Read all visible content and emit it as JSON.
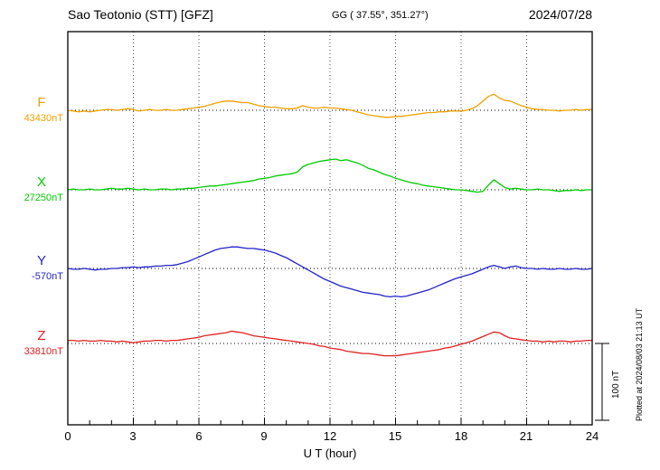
{
  "header": {
    "title": "Sao Teotonio (STT)  [GFZ]",
    "coords": "GG ( 37.55°, 351.27°)",
    "date": "2024/07/28"
  },
  "chart_data": {
    "type": "line",
    "title": "Sao Teotonio (STT) [GFZ] magnetogram 2024/07/28",
    "xlabel": "U T (hour)",
    "x_range": [
      0,
      24
    ],
    "x_tick_labels": [
      0,
      3,
      6,
      9,
      12,
      15,
      18,
      21,
      24
    ],
    "x_step_hours": 0.25,
    "grid": "dotted vertical lines every 3 hours; dotted horizontal baseline per trace",
    "legend_position": "left of axis, one label per trace",
    "scale_bar": {
      "label": "100 nT",
      "nT": 100
    },
    "plotted_note": "Plotted at 2024/08/03 21:13 UT",
    "series": [
      {
        "name": "F",
        "base_value_label": "43430nT",
        "color": "#f0a000",
        "offsets_nT": [
          0,
          -1,
          -2,
          -1,
          -2,
          -1,
          0,
          1,
          1,
          0,
          1,
          2,
          1,
          -1,
          0,
          1,
          0,
          0,
          1,
          0,
          0,
          1,
          2,
          3,
          4,
          5,
          7,
          9,
          11,
          12,
          12,
          11,
          10,
          10,
          8,
          6,
          5,
          4,
          4,
          3,
          2,
          2,
          3,
          6,
          4,
          3,
          3,
          4,
          3,
          3,
          2,
          1,
          0,
          -2,
          -4,
          -6,
          -7,
          -8,
          -9,
          -9,
          -8,
          -8,
          -7,
          -6,
          -5,
          -4,
          -3,
          -3,
          -2,
          -2,
          -1,
          -1,
          -1,
          0,
          2,
          6,
          12,
          18,
          21,
          16,
          13,
          12,
          9,
          6,
          4,
          2,
          1,
          1,
          0,
          0,
          -1,
          0,
          0,
          1,
          0,
          1,
          1
        ]
      },
      {
        "name": "X",
        "base_value_label": "27250nT",
        "color": "#00cc00",
        "offsets_nT": [
          0,
          1,
          0,
          0,
          1,
          0,
          0,
          1,
          2,
          1,
          1,
          2,
          1,
          0,
          1,
          0,
          0,
          1,
          1,
          0,
          1,
          1,
          2,
          2,
          3,
          4,
          5,
          5,
          6,
          7,
          8,
          9,
          10,
          11,
          12,
          14,
          15,
          16,
          18,
          19,
          20,
          21,
          23,
          30,
          33,
          35,
          37,
          38,
          39,
          40,
          38,
          39,
          37,
          35,
          32,
          28,
          26,
          23,
          20,
          18,
          15,
          13,
          11,
          9,
          8,
          6,
          5,
          4,
          3,
          2,
          1,
          0,
          0,
          -1,
          -2,
          -3,
          -2,
          6,
          13,
          8,
          3,
          1,
          2,
          1,
          0,
          0,
          1,
          0,
          0,
          -1,
          -2,
          -1,
          -1,
          0,
          -1,
          0,
          0
        ]
      },
      {
        "name": "Y",
        "base_value_label": "-570nT",
        "color": "#2222cc",
        "offsets_nT": [
          0,
          -1,
          -1,
          0,
          -1,
          -2,
          -1,
          -1,
          0,
          0,
          1,
          1,
          2,
          1,
          2,
          2,
          3,
          3,
          4,
          4,
          5,
          7,
          9,
          12,
          15,
          18,
          21,
          24,
          26,
          27,
          28,
          28,
          27,
          26,
          26,
          25,
          24,
          22,
          20,
          17,
          14,
          10,
          6,
          2,
          -2,
          -6,
          -10,
          -14,
          -17,
          -20,
          -23,
          -25,
          -27,
          -29,
          -31,
          -32,
          -33,
          -34,
          -36,
          -37,
          -36,
          -37,
          -36,
          -34,
          -32,
          -30,
          -28,
          -25,
          -22,
          -19,
          -16,
          -13,
          -11,
          -9,
          -7,
          -4,
          -1,
          2,
          4,
          2,
          0,
          2,
          3,
          1,
          0,
          0,
          -1,
          0,
          -1,
          -1,
          0,
          -1,
          -1,
          0,
          -1,
          -1,
          0
        ]
      },
      {
        "name": "Z",
        "base_value_label": "33810nT",
        "color": "#e02020",
        "offsets_nT": [
          4,
          4,
          3,
          4,
          3,
          3,
          4,
          3,
          3,
          2,
          3,
          2,
          1,
          2,
          3,
          3,
          4,
          4,
          3,
          4,
          4,
          5,
          6,
          7,
          8,
          10,
          11,
          12,
          13,
          14,
          16,
          15,
          14,
          12,
          10,
          9,
          8,
          7,
          6,
          5,
          4,
          3,
          2,
          1,
          0,
          -1,
          -3,
          -4,
          -6,
          -7,
          -8,
          -10,
          -11,
          -12,
          -13,
          -13,
          -14,
          -15,
          -16,
          -16,
          -16,
          -15,
          -14,
          -13,
          -12,
          -11,
          -10,
          -9,
          -8,
          -6,
          -5,
          -3,
          -1,
          1,
          3,
          6,
          9,
          12,
          15,
          14,
          10,
          7,
          6,
          5,
          4,
          3,
          3,
          2,
          3,
          2,
          3,
          3,
          2,
          3,
          3,
          4,
          4
        ]
      }
    ]
  }
}
